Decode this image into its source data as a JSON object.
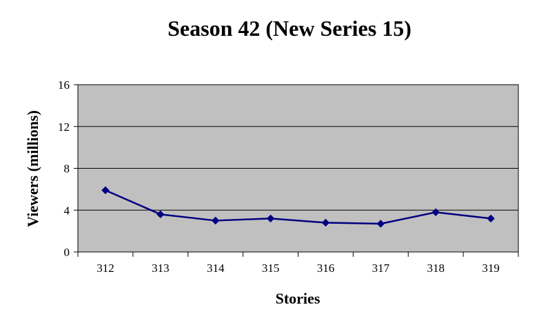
{
  "chart_data": {
    "type": "line",
    "title": "Season 42 (New Series 15)",
    "xlabel": "Stories",
    "ylabel": "Viewers (millions)",
    "categories": [
      "312",
      "313",
      "314",
      "315",
      "316",
      "317",
      "318",
      "319"
    ],
    "series": [
      {
        "values": [
          5.9,
          3.6,
          3.0,
          3.2,
          2.8,
          2.7,
          3.8,
          3.2
        ]
      }
    ],
    "ylim": [
      0,
      16
    ],
    "yticks": [
      "0",
      "4",
      "8",
      "12",
      "16"
    ],
    "grid": true,
    "legend": "none",
    "colors": {
      "plot_background": "#c0c0c0",
      "line": "#000080",
      "marker": "#000080",
      "gridline": "#000000",
      "axis": "#000000"
    }
  }
}
